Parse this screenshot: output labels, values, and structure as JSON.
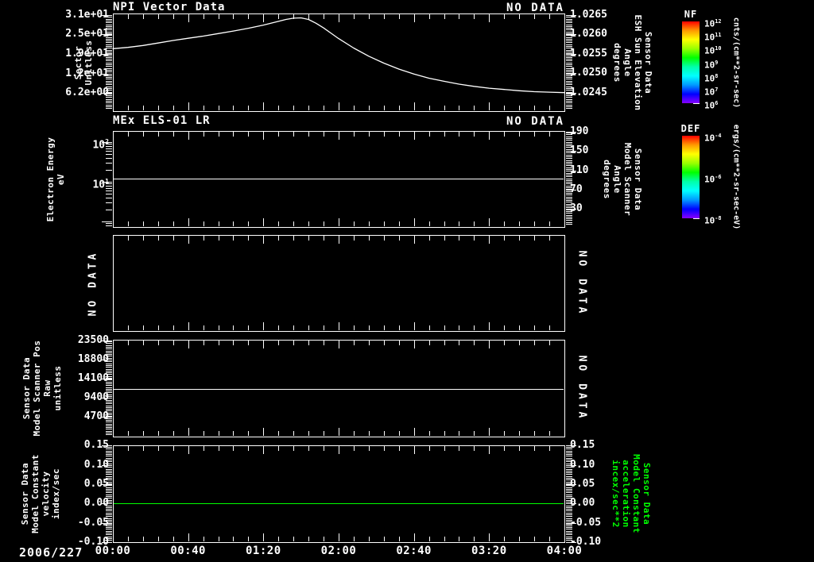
{
  "figure": {
    "background": "#000000",
    "foreground": "#ffffff",
    "green": "#00ff00"
  },
  "x_axis": {
    "date_label": "2006/227",
    "tick_labels": [
      "00:00",
      "00:40",
      "01:20",
      "02:00",
      "02:40",
      "03:20",
      "04:00"
    ],
    "tick_minutes": [
      0,
      40,
      80,
      120,
      160,
      200,
      240
    ],
    "minor_step_minutes": 8,
    "range_minutes": [
      0,
      240
    ]
  },
  "chart_data": [
    {
      "id": "npi-vector-data",
      "type": "line",
      "title": "NPI Vector Data",
      "status_right": "NO DATA",
      "ylabel_left_lines": [
        "Sector",
        "Unitless"
      ],
      "yscale": "linear",
      "yticks_left": {
        "labels": [
          "3.1e+01",
          "2.5e+01",
          "1.9e+01",
          "1.2e+01",
          "6.2e+00"
        ],
        "values": [
          31,
          24.8,
          18.6,
          12.4,
          6.2
        ]
      },
      "ylim_left": [
        0.4,
        31.5
      ],
      "ylabel_right_lines": [
        "Sensor Data",
        "ESH Sun Elevation",
        "Angle",
        "degrees"
      ],
      "yticks_right": {
        "labels": [
          "1.0265",
          "1.0260",
          "1.0255",
          "1.0250",
          "1.0245"
        ],
        "values": [
          1.0265,
          1.026,
          1.0255,
          1.025,
          1.0245
        ]
      },
      "ylim_right": [
        1.02403,
        1.02654
      ],
      "series": [
        {
          "name": "sector",
          "color": "#ffffff",
          "axis": "left",
          "x_minutes": [
            0,
            8,
            16,
            24,
            32,
            40,
            48,
            56,
            64,
            72,
            80,
            88,
            92,
            96,
            100,
            104,
            108,
            112,
            116,
            120,
            128,
            136,
            144,
            152,
            160,
            168,
            176,
            184,
            192,
            200,
            208,
            216,
            224,
            232,
            240
          ],
          "values": [
            20.3,
            20.7,
            21.3,
            22.1,
            22.9,
            23.6,
            24.3,
            25.1,
            25.9,
            26.8,
            27.8,
            29.0,
            29.6,
            30.0,
            30.1,
            29.6,
            28.4,
            26.9,
            25.2,
            23.5,
            20.5,
            17.9,
            15.7,
            13.8,
            12.2,
            10.9,
            9.9,
            9.0,
            8.3,
            7.7,
            7.3,
            6.9,
            6.6,
            6.45,
            6.3
          ]
        }
      ]
    },
    {
      "id": "mex-els-01-lr",
      "type": "line",
      "title": "MEx ELS-01 LR",
      "status_right": "NO DATA",
      "ylabel_left_lines": [
        "Electron Energy",
        "eV"
      ],
      "yscale": "log",
      "yticks_left": {
        "labels": [
          {
            "base": "10",
            "exp": "2"
          },
          {
            "base": "10",
            "exp": "1"
          }
        ],
        "values": [
          100,
          10
        ]
      },
      "ylim_left": [
        0.72,
        190
      ],
      "ylabel_right_lines": [
        "Sensor Data",
        "Model Scanner",
        "Angle",
        "degrees"
      ],
      "yticks_right": {
        "labels": [
          "190",
          "150",
          "110",
          "70",
          "30"
        ],
        "values": [
          190,
          150,
          110,
          70,
          30
        ]
      },
      "ylim_right": [
        -8,
        192
      ],
      "series": [
        {
          "name": "electron-energy-line",
          "color": "#ffffff",
          "axis": "left",
          "constant": 12
        }
      ]
    },
    {
      "id": "empty-panel",
      "type": "empty",
      "status_left_rotated": "NO DATA",
      "status_right_rotated": "NO DATA",
      "series": []
    },
    {
      "id": "model-scanner-pos",
      "type": "line",
      "ylabel_left_lines": [
        "Sensor Data",
        "Model Scanner Pos",
        "Raw",
        "unitless"
      ],
      "yscale": "linear",
      "yticks_left": {
        "labels": [
          "23500",
          "18800",
          "14100",
          "9400",
          "4700"
        ],
        "values": [
          23500,
          18800,
          14100,
          9400,
          4700
        ]
      },
      "ylim_left": [
        -190,
        23700
      ],
      "status_right_rotated": "NO DATA",
      "series": [
        {
          "name": "scanner-pos-raw",
          "color": "#ffffff",
          "axis": "left",
          "constant": 11600
        }
      ]
    },
    {
      "id": "model-constant-velocity",
      "type": "line",
      "ylabel_left_lines": [
        "Sensor Data",
        "Model Constant",
        "velocity",
        "index/sec"
      ],
      "yscale": "linear",
      "yticks_left": {
        "labels": [
          "0.15",
          "0.10",
          "0.05",
          "0.00",
          "-0.05",
          "-0.10"
        ],
        "values": [
          0.15,
          0.1,
          0.05,
          0.0,
          -0.05,
          -0.1
        ]
      },
      "ylim_left": [
        -0.1,
        0.151
      ],
      "ylabel_right_lines": [
        "Sensor Data",
        "Model Constant",
        "acceleration",
        "incex/sec**2"
      ],
      "ylabel_right_color": "#00ff00",
      "yticks_right": {
        "labels": [
          "0.15",
          "0.10",
          "0.05",
          "0.00",
          "-0.05",
          "-0.10"
        ],
        "values": [
          0.15,
          0.1,
          0.05,
          0.0,
          -0.05,
          -0.1
        ]
      },
      "ylim_right": [
        -0.1,
        0.151
      ],
      "series": [
        {
          "name": "velocity-line",
          "color": "#00ff00",
          "axis": "left",
          "constant": 0.0
        }
      ]
    }
  ],
  "colorbars": [
    {
      "name": "NF",
      "unit": "cnts/(cm**2-sr-sec)",
      "scale": "log",
      "tick_exponents": [
        "12",
        "11",
        "10",
        "9",
        "8",
        "7",
        "6"
      ],
      "gradient_top_to_bottom": [
        "#ff0000",
        "#ff9900",
        "#ffff00",
        "#99ff00",
        "#00ff00",
        "#00ffaa",
        "#00ffff",
        "#0099ff",
        "#0000ff",
        "#8800ff"
      ]
    },
    {
      "name": "DEF",
      "unit": "ergs/(cm**2-sr-sec-eV)",
      "scale": "log",
      "tick_exponents": [
        "-4",
        "-6",
        "-8"
      ],
      "gradient_top_to_bottom": [
        "#ff0000",
        "#ff9900",
        "#ffff00",
        "#99ff00",
        "#00ff00",
        "#00ffaa",
        "#00ffff",
        "#0099ff",
        "#0000ff",
        "#8800ff"
      ]
    }
  ]
}
